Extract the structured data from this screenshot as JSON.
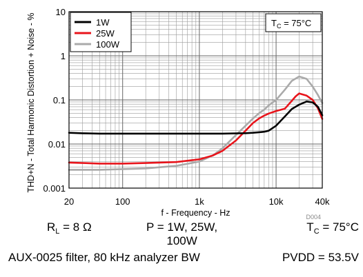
{
  "chart_data": {
    "type": "line",
    "title": "",
    "xlabel": "f - Frequency - Hz",
    "ylabel": "THD+N - Total Harmonic Distortion + Noise - %",
    "x_scale": "log",
    "y_scale": "log",
    "xlim": [
      20,
      40000
    ],
    "ylim": [
      0.001,
      10
    ],
    "x_tick_labels": [
      {
        "v": 20,
        "label": "20"
      },
      {
        "v": 100,
        "label": "100"
      },
      {
        "v": 1000,
        "label": "1k"
      },
      {
        "v": 10000,
        "label": "10k"
      },
      {
        "v": 40000,
        "label": "40k"
      }
    ],
    "y_tick_labels": [
      {
        "v": 10,
        "label": "10"
      },
      {
        "v": 1,
        "label": "1"
      },
      {
        "v": 0.1,
        "label": "0.1"
      },
      {
        "v": 0.01,
        "label": "0.01"
      },
      {
        "v": 0.001,
        "label": "0.001"
      }
    ],
    "grid": true,
    "legend_position": "top-left",
    "annotation": {
      "text": "T",
      "sub": "C",
      "rest": " = 75°C"
    },
    "figure_id": "D004",
    "series": [
      {
        "name": "1W",
        "color": "#000000",
        "x": [
          20,
          30,
          50,
          100,
          200,
          500,
          1000,
          2000,
          3000,
          4000,
          5000,
          6000,
          7000,
          8000,
          10000,
          13000,
          16000,
          20000,
          25000,
          30000,
          35000,
          40000
        ],
        "y": [
          0.018,
          0.0175,
          0.0172,
          0.0172,
          0.0172,
          0.0172,
          0.0172,
          0.0172,
          0.0174,
          0.0176,
          0.018,
          0.0185,
          0.019,
          0.02,
          0.026,
          0.042,
          0.062,
          0.078,
          0.092,
          0.088,
          0.07,
          0.045
        ]
      },
      {
        "name": "25W",
        "color": "#e8141b",
        "x": [
          20,
          50,
          100,
          200,
          500,
          1000,
          1500,
          2000,
          3000,
          4000,
          5000,
          6000,
          7000,
          8000,
          10000,
          13000,
          16000,
          18000,
          20000,
          25000,
          30000,
          35000,
          40000
        ],
        "y": [
          0.0038,
          0.0036,
          0.0036,
          0.0037,
          0.0039,
          0.0045,
          0.0055,
          0.007,
          0.012,
          0.02,
          0.03,
          0.038,
          0.044,
          0.049,
          0.056,
          0.063,
          0.095,
          0.12,
          0.14,
          0.125,
          0.1,
          0.065,
          0.037
        ]
      },
      {
        "name": "100W",
        "color": "#aaaaaa",
        "x": [
          20,
          50,
          100,
          200,
          500,
          1000,
          1500,
          2000,
          3000,
          4000,
          5000,
          6000,
          7000,
          8000,
          10000,
          13000,
          16000,
          20000,
          25000,
          30000,
          35000,
          40000
        ],
        "y": [
          0.0026,
          0.0026,
          0.0027,
          0.0028,
          0.0032,
          0.004,
          0.0055,
          0.008,
          0.016,
          0.026,
          0.038,
          0.05,
          0.06,
          0.075,
          0.1,
          0.17,
          0.27,
          0.34,
          0.3,
          0.2,
          0.13,
          0.085
        ]
      }
    ]
  },
  "conditions": {
    "rl_label": "R",
    "rl_sub": "L",
    "rl_value": " = 8 Ω",
    "power_line1": "P = 1W, 25W,",
    "power_line2": "100W",
    "tc_label": "T",
    "tc_sub": "C",
    "tc_value": " = 75°C",
    "filter": "AUX-0025 filter, 80 kHz analyzer BW",
    "pvdd": "PVDD = 53.5V"
  }
}
